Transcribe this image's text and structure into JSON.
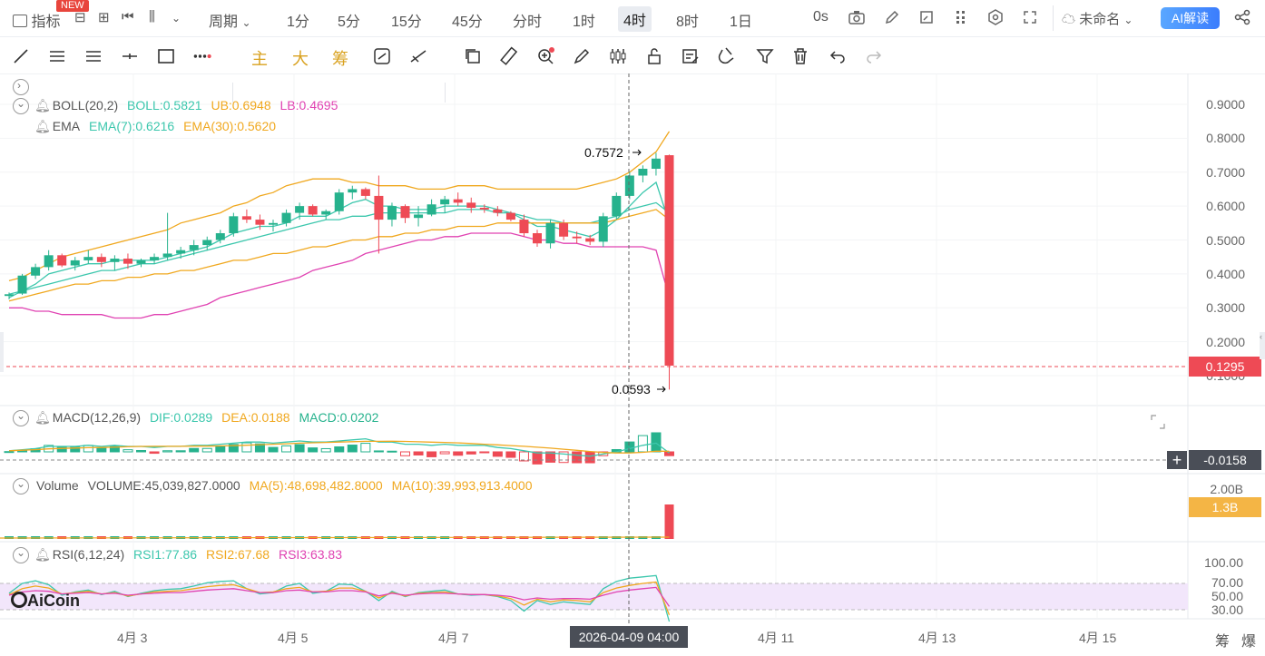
{
  "topbar": {
    "indicator_label": "指标",
    "new_badge": "NEW",
    "period_label": "周期",
    "intervals": [
      "1分",
      "5分",
      "15分",
      "45分",
      "分时",
      "1时",
      "4时",
      "8时",
      "1日"
    ],
    "active_interval": "4时",
    "countdown": "0s",
    "layout_name": "未命名",
    "ai_label": "AI解读"
  },
  "toolbar": {
    "main_label": "主",
    "big_label": "大",
    "chip_label": "筹"
  },
  "indicators": {
    "boll": {
      "name": "BOLL(20,2)",
      "boll": "BOLL:0.5821",
      "ub": "UB:0.6948",
      "lb": "LB:0.4695"
    },
    "ema": {
      "name": "EMA",
      "ema7": "EMA(7):0.6216",
      "ema30": "EMA(30):0.5620"
    },
    "macd": {
      "name": "MACD(12,26,9)",
      "dif": "DIF:0.0289",
      "dea": "DEA:0.0188",
      "macd": "MACD:0.0202"
    },
    "volume": {
      "name": "Volume",
      "vol": "VOLUME:45,039,827.0000",
      "ma5": "MA(5):48,698,482.8000",
      "ma10": "MA(10):39,993,913.4000"
    },
    "rsi": {
      "name": "RSI(6,12,24)",
      "rsi1": "RSI1:77.86",
      "rsi2": "RSI2:67.68",
      "rsi3": "RSI3:63.83"
    }
  },
  "price_axis": [
    "0.9000",
    "0.8000",
    "0.7000",
    "0.6000",
    "0.5000",
    "0.4000",
    "0.3000",
    "0.2000",
    "0.1000"
  ],
  "annotations": {
    "high": "0.7572",
    "low": "0.0593"
  },
  "current_price": "0.1295",
  "macd_value": "-0.0158",
  "volume_axis": {
    "top": "2.00B",
    "current": "1.3B"
  },
  "rsi_axis": [
    "100.00",
    "70.00",
    "50.00",
    "30.00"
  ],
  "time_axis": [
    "4月 3",
    "4月 5",
    "4月 7",
    "4月 11",
    "4月 13",
    "4月 15"
  ],
  "crosshair_time": "2026-04-09 04:00",
  "brand": "AiCoin",
  "bottom_right": [
    "筹",
    "爆"
  ],
  "colors": {
    "up": "#26b28d",
    "down": "#ee4a55",
    "ub": "#f0a81f",
    "lb": "#e043b2",
    "boll": "#3cc7ad",
    "accent": "#3b7dfd"
  },
  "chart_data": {
    "type": "candlestick",
    "interval": "4h",
    "candles": [
      [
        0.335,
        0.345,
        0.325,
        0.34
      ],
      [
        0.342,
        0.4,
        0.338,
        0.395
      ],
      [
        0.395,
        0.43,
        0.385,
        0.42
      ],
      [
        0.42,
        0.47,
        0.41,
        0.455
      ],
      [
        0.455,
        0.46,
        0.42,
        0.425
      ],
      [
        0.425,
        0.45,
        0.41,
        0.44
      ],
      [
        0.44,
        0.47,
        0.43,
        0.45
      ],
      [
        0.45,
        0.46,
        0.42,
        0.435
      ],
      [
        0.435,
        0.455,
        0.41,
        0.445
      ],
      [
        0.445,
        0.46,
        0.415,
        0.43
      ],
      [
        0.43,
        0.445,
        0.42,
        0.44
      ],
      [
        0.44,
        0.46,
        0.43,
        0.45
      ],
      [
        0.45,
        0.58,
        0.44,
        0.46
      ],
      [
        0.46,
        0.48,
        0.445,
        0.47
      ],
      [
        0.47,
        0.5,
        0.455,
        0.485
      ],
      [
        0.485,
        0.51,
        0.47,
        0.5
      ],
      [
        0.5,
        0.53,
        0.49,
        0.52
      ],
      [
        0.52,
        0.58,
        0.51,
        0.57
      ],
      [
        0.57,
        0.59,
        0.55,
        0.56
      ],
      [
        0.56,
        0.575,
        0.53,
        0.545
      ],
      [
        0.545,
        0.56,
        0.525,
        0.55
      ],
      [
        0.55,
        0.59,
        0.54,
        0.58
      ],
      [
        0.58,
        0.61,
        0.56,
        0.6
      ],
      [
        0.6,
        0.605,
        0.57,
        0.575
      ],
      [
        0.575,
        0.59,
        0.56,
        0.585
      ],
      [
        0.585,
        0.65,
        0.575,
        0.64
      ],
      [
        0.64,
        0.66,
        0.62,
        0.65
      ],
      [
        0.65,
        0.655,
        0.62,
        0.63
      ],
      [
        0.63,
        0.69,
        0.46,
        0.56
      ],
      [
        0.56,
        0.61,
        0.54,
        0.6
      ],
      [
        0.6,
        0.605,
        0.55,
        0.565
      ],
      [
        0.565,
        0.6,
        0.54,
        0.575
      ],
      [
        0.575,
        0.62,
        0.57,
        0.605
      ],
      [
        0.605,
        0.63,
        0.58,
        0.62
      ],
      [
        0.62,
        0.64,
        0.6,
        0.61
      ],
      [
        0.61,
        0.625,
        0.58,
        0.595
      ],
      [
        0.595,
        0.605,
        0.58,
        0.59
      ],
      [
        0.59,
        0.6,
        0.57,
        0.58
      ],
      [
        0.58,
        0.585,
        0.555,
        0.56
      ],
      [
        0.56,
        0.575,
        0.51,
        0.52
      ],
      [
        0.52,
        0.53,
        0.48,
        0.49
      ],
      [
        0.49,
        0.56,
        0.475,
        0.55
      ],
      [
        0.55,
        0.56,
        0.5,
        0.51
      ],
      [
        0.51,
        0.525,
        0.49,
        0.505
      ],
      [
        0.505,
        0.515,
        0.485,
        0.495
      ],
      [
        0.495,
        0.58,
        0.48,
        0.57
      ],
      [
        0.57,
        0.64,
        0.56,
        0.63
      ],
      [
        0.63,
        0.7,
        0.62,
        0.69
      ],
      [
        0.69,
        0.72,
        0.67,
        0.71
      ],
      [
        0.71,
        0.757,
        0.69,
        0.74
      ],
      [
        0.75,
        0.752,
        0.059,
        0.1295
      ]
    ],
    "ub": [
      0.38,
      0.39,
      0.41,
      0.43,
      0.45,
      0.46,
      0.47,
      0.48,
      0.49,
      0.5,
      0.51,
      0.52,
      0.53,
      0.55,
      0.56,
      0.57,
      0.58,
      0.6,
      0.61,
      0.63,
      0.64,
      0.66,
      0.67,
      0.68,
      0.68,
      0.68,
      0.67,
      0.67,
      0.66,
      0.66,
      0.66,
      0.65,
      0.65,
      0.65,
      0.66,
      0.66,
      0.66,
      0.65,
      0.65,
      0.65,
      0.65,
      0.65,
      0.65,
      0.65,
      0.66,
      0.67,
      0.68,
      0.7,
      0.73,
      0.76,
      0.82
    ],
    "mid": [
      0.34,
      0.35,
      0.36,
      0.37,
      0.38,
      0.39,
      0.4,
      0.41,
      0.41,
      0.42,
      0.43,
      0.43,
      0.44,
      0.45,
      0.46,
      0.47,
      0.48,
      0.49,
      0.5,
      0.51,
      0.52,
      0.53,
      0.54,
      0.55,
      0.56,
      0.56,
      0.57,
      0.57,
      0.58,
      0.58,
      0.58,
      0.58,
      0.58,
      0.58,
      0.59,
      0.59,
      0.59,
      0.58,
      0.58,
      0.57,
      0.56,
      0.56,
      0.55,
      0.55,
      0.55,
      0.56,
      0.57,
      0.59,
      0.6,
      0.61,
      0.58
    ],
    "lb": [
      0.3,
      0.3,
      0.29,
      0.29,
      0.28,
      0.28,
      0.28,
      0.28,
      0.27,
      0.27,
      0.27,
      0.28,
      0.28,
      0.29,
      0.3,
      0.31,
      0.33,
      0.34,
      0.35,
      0.36,
      0.37,
      0.38,
      0.39,
      0.41,
      0.42,
      0.43,
      0.44,
      0.46,
      0.47,
      0.48,
      0.49,
      0.5,
      0.5,
      0.51,
      0.51,
      0.52,
      0.52,
      0.52,
      0.52,
      0.51,
      0.5,
      0.5,
      0.49,
      0.49,
      0.48,
      0.48,
      0.48,
      0.48,
      0.48,
      0.47,
      0.33
    ],
    "ema7": [
      0.33,
      0.35,
      0.37,
      0.4,
      0.41,
      0.42,
      0.43,
      0.43,
      0.44,
      0.44,
      0.44,
      0.44,
      0.45,
      0.46,
      0.47,
      0.48,
      0.5,
      0.52,
      0.53,
      0.54,
      0.54,
      0.55,
      0.57,
      0.57,
      0.57,
      0.59,
      0.61,
      0.62,
      0.6,
      0.6,
      0.59,
      0.59,
      0.59,
      0.6,
      0.6,
      0.6,
      0.6,
      0.59,
      0.58,
      0.56,
      0.54,
      0.54,
      0.53,
      0.52,
      0.51,
      0.53,
      0.56,
      0.6,
      0.64,
      0.67,
      0.55
    ],
    "ema30": [
      0.32,
      0.33,
      0.34,
      0.35,
      0.36,
      0.37,
      0.37,
      0.38,
      0.38,
      0.39,
      0.39,
      0.4,
      0.4,
      0.41,
      0.41,
      0.42,
      0.43,
      0.44,
      0.44,
      0.45,
      0.46,
      0.46,
      0.47,
      0.48,
      0.48,
      0.49,
      0.5,
      0.5,
      0.51,
      0.51,
      0.52,
      0.52,
      0.53,
      0.53,
      0.54,
      0.54,
      0.54,
      0.55,
      0.55,
      0.55,
      0.55,
      0.55,
      0.55,
      0.55,
      0.55,
      0.55,
      0.56,
      0.57,
      0.58,
      0.59,
      0.56
    ],
    "rsi1": [
      55,
      70,
      74,
      68,
      52,
      57,
      60,
      53,
      58,
      50,
      55,
      59,
      61,
      62,
      66,
      71,
      73,
      74,
      62,
      54,
      56,
      66,
      70,
      55,
      58,
      69,
      68,
      58,
      44,
      58,
      50,
      56,
      58,
      60,
      54,
      52,
      53,
      50,
      44,
      28,
      44,
      38,
      42,
      40,
      38,
      62,
      73,
      78,
      80,
      82,
      12
    ],
    "rsi2": [
      53,
      62,
      66,
      63,
      54,
      56,
      58,
      54,
      56,
      51,
      54,
      57,
      58,
      59,
      62,
      65,
      67,
      68,
      62,
      56,
      57,
      62,
      64,
      57,
      58,
      63,
      63,
      58,
      48,
      56,
      51,
      55,
      56,
      57,
      54,
      53,
      53,
      51,
      47,
      37,
      46,
      42,
      45,
      44,
      42,
      56,
      63,
      67,
      70,
      72,
      22
    ],
    "rsi3": [
      52,
      57,
      59,
      58,
      54,
      55,
      56,
      54,
      55,
      52,
      54,
      55,
      56,
      56,
      58,
      60,
      61,
      62,
      59,
      56,
      56,
      59,
      60,
      57,
      57,
      59,
      59,
      57,
      51,
      55,
      52,
      54,
      55,
      55,
      54,
      53,
      53,
      52,
      50,
      45,
      48,
      46,
      47,
      47,
      46,
      52,
      57,
      60,
      62,
      64,
      35
    ],
    "time_labels": [
      "4月 3",
      "4月 5",
      "4月 7",
      "4月 11",
      "4月 13",
      "4月 15"
    ]
  }
}
